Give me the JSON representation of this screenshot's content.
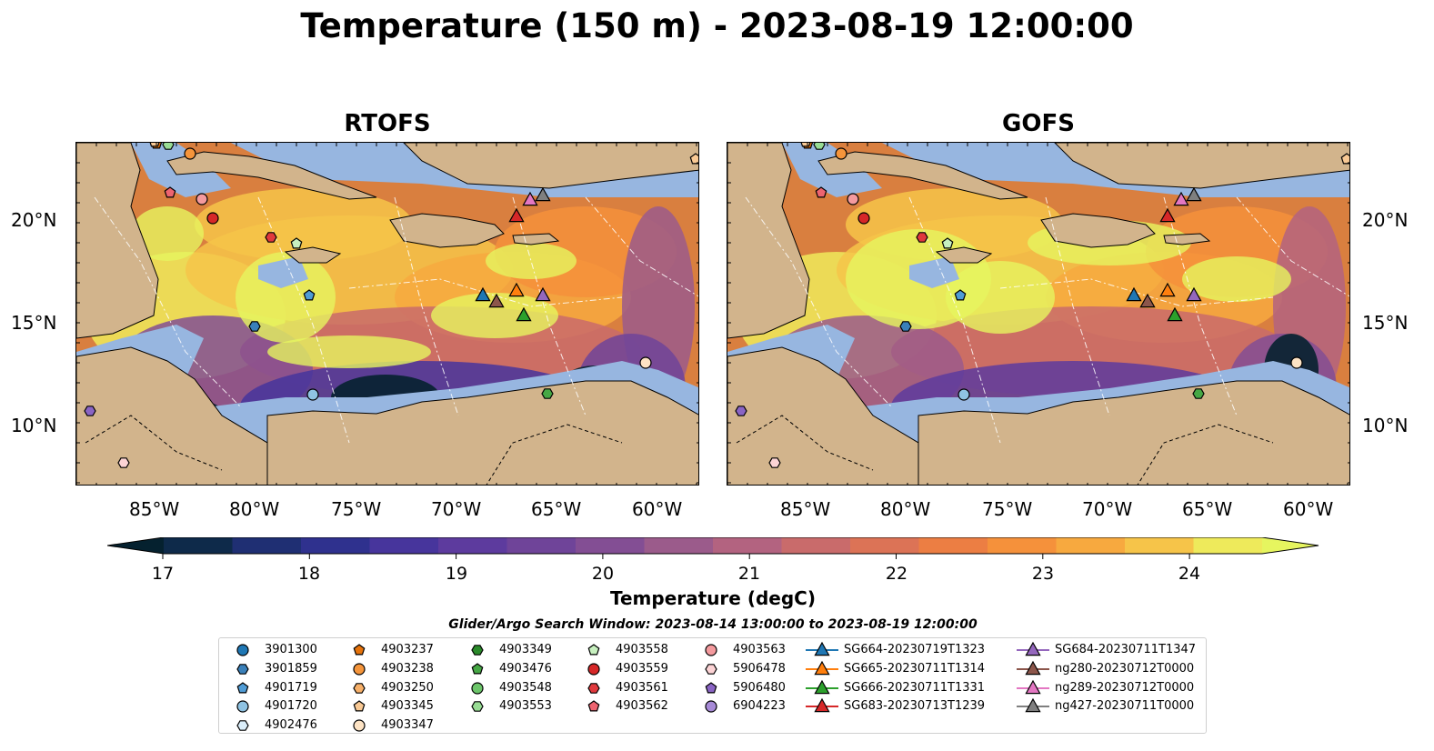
{
  "title": "Temperature (150 m) - 2023-08-19 12:00:00",
  "panels": [
    {
      "title": "RTOFS",
      "variant": "rtofs"
    },
    {
      "title": "GOFS",
      "variant": "gofs"
    }
  ],
  "axes": {
    "lon_ticks": [
      "85°W",
      "80°W",
      "75°W",
      "70°W",
      "65°W",
      "60°W"
    ],
    "lat_ticks": [
      "20°N",
      "15°N",
      "10°N"
    ]
  },
  "colorbar": {
    "label": "Temperature (degC)",
    "tick_labels": [
      "17",
      "18",
      "19",
      "20",
      "21",
      "22",
      "23",
      "24"
    ],
    "colors": [
      "#05212f",
      "#0e2a4a",
      "#1f2f73",
      "#2f318e",
      "#47359c",
      "#5d3b9e",
      "#6f4499",
      "#834e94",
      "#9b5b8b",
      "#b36380",
      "#c96b6b",
      "#dc7356",
      "#ec7e43",
      "#f5913b",
      "#f7a93f",
      "#f6c449",
      "#eeea5b",
      "#e6f55f"
    ]
  },
  "search_window": "Glider/Argo Search Window: 2023-08-14 13:00:00 to 2023-08-19 12:00:00",
  "map_colors": {
    "land": "#d2b48c",
    "shelf": "#97b6e0",
    "border": "#000000"
  },
  "legend": {
    "columns": [
      [
        {
          "label": "3901300",
          "marker": "circle",
          "color": "#1f77b4"
        },
        {
          "label": "3901859",
          "marker": "hexagon",
          "color": "#3a80b9"
        },
        {
          "label": "4901719",
          "marker": "pentagon",
          "color": "#4f9cd6"
        },
        {
          "label": "4901720",
          "marker": "circle",
          "color": "#8fc3e3"
        },
        {
          "label": "4902476",
          "marker": "hexagon",
          "color": "#dbeefa"
        }
      ],
      [
        {
          "label": "4903237",
          "marker": "pentagon",
          "color": "#e6730b"
        },
        {
          "label": "4903238",
          "marker": "circle",
          "color": "#f5953b"
        },
        {
          "label": "4903250",
          "marker": "hexagon",
          "color": "#f7b069"
        },
        {
          "label": "4903345",
          "marker": "pentagon",
          "color": "#f9c994"
        },
        {
          "label": "4903347",
          "marker": "circle",
          "color": "#fde3c4"
        }
      ],
      [
        {
          "label": "4903349",
          "marker": "hexagon",
          "color": "#2a8a2a"
        },
        {
          "label": "4903476",
          "marker": "pentagon",
          "color": "#46a845"
        },
        {
          "label": "4903548",
          "marker": "circle",
          "color": "#6cc56a"
        },
        {
          "label": "4903553",
          "marker": "hexagon",
          "color": "#98dc94"
        }
      ],
      [
        {
          "label": "4903558",
          "marker": "pentagon",
          "color": "#c7f0bf"
        },
        {
          "label": "4903559",
          "marker": "circle",
          "color": "#d62728"
        },
        {
          "label": "4903561",
          "marker": "hexagon",
          "color": "#e0393d"
        },
        {
          "label": "4903562",
          "marker": "pentagon",
          "color": "#ed6470"
        }
      ],
      [
        {
          "label": "4903563",
          "marker": "circle",
          "color": "#f49a9e"
        },
        {
          "label": "5906478",
          "marker": "hexagon",
          "color": "#fcd3d5"
        },
        {
          "label": "5906480",
          "marker": "pentagon",
          "color": "#8a64c4"
        },
        {
          "label": "6904223",
          "marker": "circle",
          "color": "#a78ad7"
        }
      ],
      [
        {
          "label": "SG664-20230719T1323",
          "marker": "triangle",
          "color": "#1f77b4"
        },
        {
          "label": "SG665-20230711T1314",
          "marker": "triangle",
          "color": "#ff7f0e"
        },
        {
          "label": "SG666-20230711T1331",
          "marker": "triangle",
          "color": "#2ca02c"
        },
        {
          "label": "SG683-20230713T1239",
          "marker": "triangle",
          "color": "#d62728"
        }
      ],
      [
        {
          "label": "SG684-20230711T1347",
          "marker": "triangle",
          "color": "#9467bd"
        },
        {
          "label": "ng280-20230712T0000",
          "marker": "triangle",
          "color": "#8c564b"
        },
        {
          "label": "ng289-20230712T0000",
          "marker": "triangle",
          "color": "#e377c2"
        },
        {
          "label": "ng427-20230711T0000",
          "marker": "triangle",
          "color": "#7f7f7f"
        }
      ]
    ]
  }
}
